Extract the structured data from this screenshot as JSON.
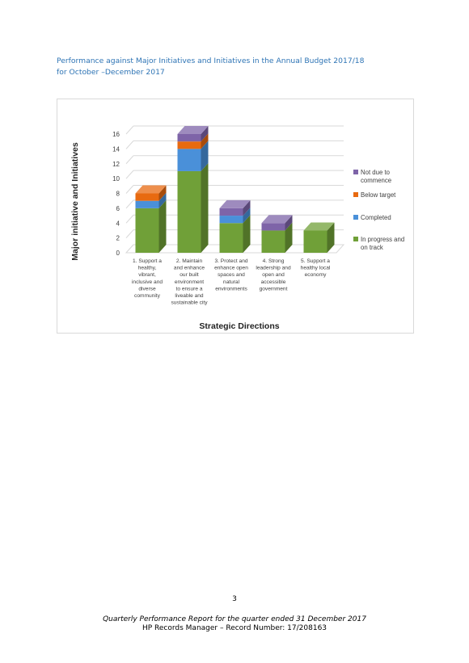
{
  "heading": {
    "line1": "Performance against Major Initiatives and Initiatives in the Annual Budget 2017/18",
    "line2": "for October –December 2017"
  },
  "chart_data": {
    "type": "bar",
    "stacked": true,
    "three_d": true,
    "xlabel": "Strategic Directions",
    "ylabel": "Major initiative and Initiatives",
    "ylim": [
      0,
      16
    ],
    "yticks": [
      0,
      2,
      4,
      6,
      8,
      10,
      12,
      14,
      16
    ],
    "grid": true,
    "legend_position": "right",
    "categories": [
      [
        "1. Support a",
        "healthy,",
        "vibrant,",
        "inclusive and",
        "diverse",
        "community"
      ],
      [
        "2. Maintain",
        "and enhance",
        "our built",
        "environment",
        "to ensure a",
        "liveable and",
        "sustainable city"
      ],
      [
        "3. Protect and",
        "enhance open",
        "spaces and",
        "natural",
        "environments"
      ],
      [
        "4. Strong",
        "leadership and",
        "open and",
        "accessible",
        "government"
      ],
      [
        "5. Support a",
        "healthy local",
        "economy"
      ]
    ],
    "series": [
      {
        "name": "In progress and on track",
        "legend_lines": [
          "In progress and",
          "on track"
        ],
        "color": "#70a038",
        "values": [
          6,
          11,
          4,
          3,
          3
        ]
      },
      {
        "name": "Completed",
        "legend_lines": [
          "Completed"
        ],
        "color": "#4a90d9",
        "values": [
          1,
          3,
          1,
          0,
          0
        ]
      },
      {
        "name": "Below target",
        "legend_lines": [
          "Below target"
        ],
        "color": "#e86a10",
        "values": [
          1,
          1,
          0,
          0,
          0
        ]
      },
      {
        "name": "Not due to commence",
        "legend_lines": [
          "Not due to",
          "commence"
        ],
        "color": "#7e64a8",
        "values": [
          0,
          1,
          1,
          1,
          0
        ]
      }
    ]
  },
  "page_number": "3",
  "footer": {
    "line1": "Quarterly Performance Report for the quarter ended 31 December 2017",
    "line2": "HP Records Manager – Record Number: 17/208163"
  }
}
